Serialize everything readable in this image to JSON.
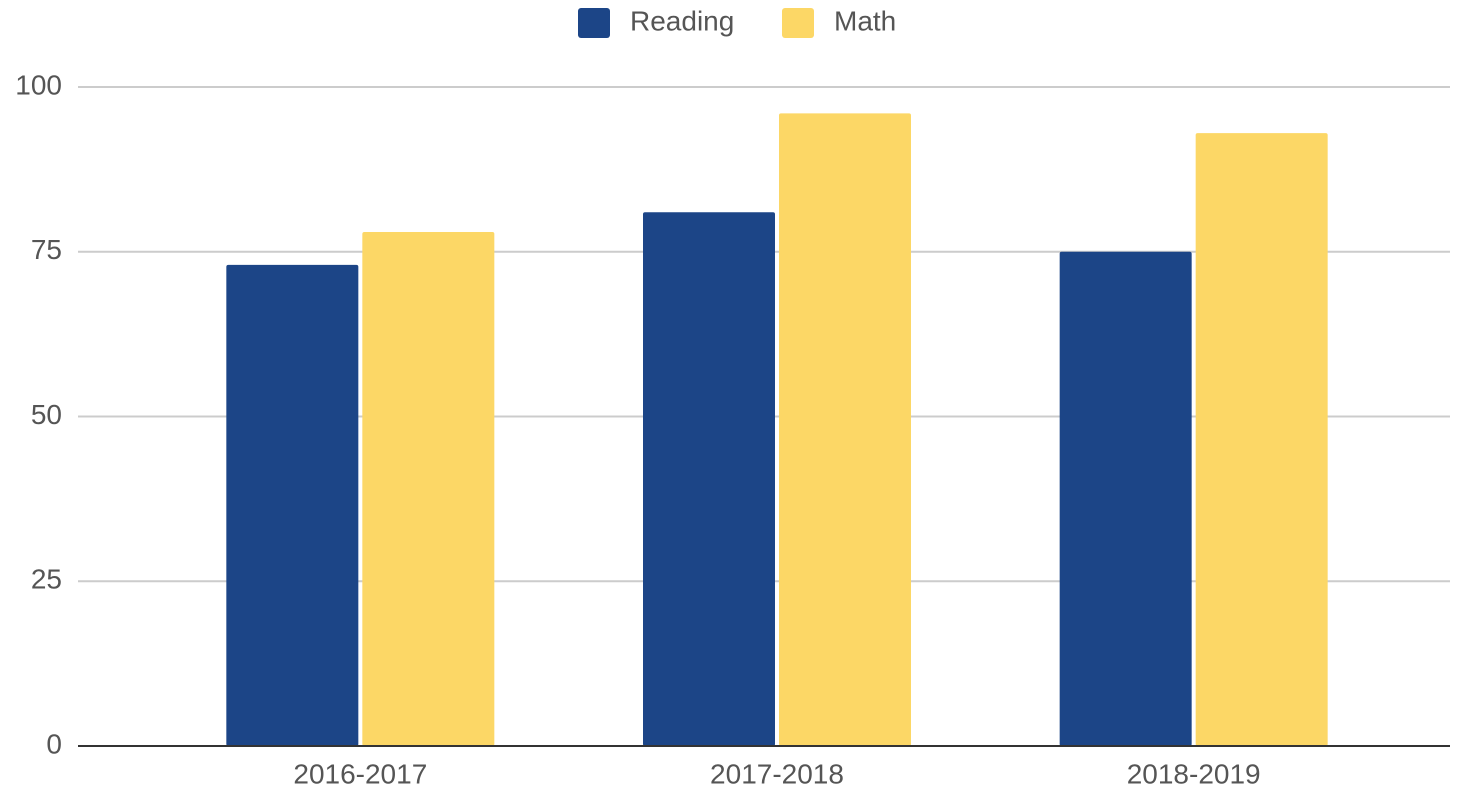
{
  "chart_data": {
    "type": "bar",
    "categories": [
      "2016-2017",
      "2017-2018",
      "2018-2019"
    ],
    "series": [
      {
        "name": "Reading",
        "color": "#1c4587",
        "values": [
          73,
          81,
          75
        ]
      },
      {
        "name": "Math",
        "color": "#fcd766",
        "values": [
          78,
          96,
          93
        ]
      }
    ],
    "ylim": [
      0,
      100
    ],
    "yticks": [
      0,
      25,
      50,
      75,
      100
    ],
    "grid": true,
    "legend": "top"
  }
}
